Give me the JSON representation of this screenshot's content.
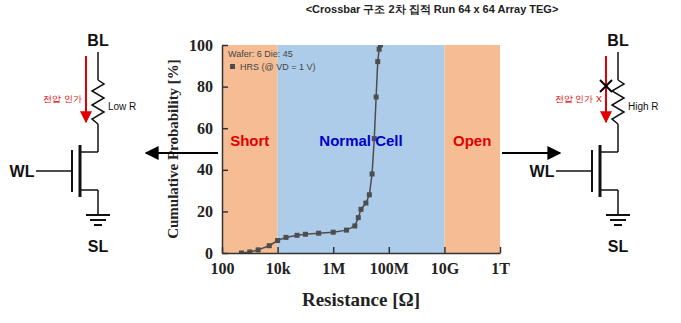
{
  "chart_data": {
    "type": "line",
    "title": "<Crossbar 구조 2차 집적 Run 64 x 64 Array TEG>",
    "subtitle": "Wafer: 6 Die: 45",
    "x_label": "Resistance [Ω]",
    "y_label": "Cumulative Probability [%]",
    "log": "x",
    "xlim": [
      100,
      1000000000000
    ],
    "xticks": [
      100,
      {
        "value": 10000,
        "label": "10k"
      },
      {
        "value": 1000000,
        "label": "1M"
      },
      {
        "value": 100000000,
        "label": "100M"
      },
      {
        "value": 10000000000,
        "label": "10G"
      },
      {
        "value": 1000000000000,
        "label": "1T"
      }
    ],
    "ylim": [
      0,
      100
    ],
    "yticks": [
      0,
      20,
      40,
      60,
      80,
      100
    ],
    "legend": "upper left",
    "x": [
      500,
      1000,
      2000,
      5000,
      10000,
      20000,
      50000,
      100000,
      300000,
      1000000,
      3000000,
      6000000,
      8000000,
      10000000,
      15000000,
      20000000,
      25000000,
      30000000,
      35000000,
      40000000,
      45000000,
      50000000
    ],
    "series": [
      {
        "name": "HRS (@ VD = 1 V)",
        "color": "#4d4d4d",
        "marker": "square",
        "values": [
          0,
          0.5,
          1.5,
          3.5,
          6,
          7.5,
          8.5,
          9,
          9.5,
          10,
          11,
          13,
          17,
          21,
          24,
          28,
          38,
          55,
          75,
          92,
          98,
          100
        ]
      }
    ],
    "regions": [
      {
        "label": "Short",
        "from": 100,
        "to": 10000,
        "color": "#f4b183"
      },
      {
        "label": "Normal Cell",
        "from": 10000,
        "to": 10000000000,
        "color": "#9dc3e6"
      },
      {
        "label": "Open",
        "from": 10000000000,
        "to": 1000000000000,
        "color": "#f4b183"
      }
    ]
  },
  "schematics": [
    {
      "bl": "BL",
      "resistor": "Low R",
      "voltage": "전압 인가",
      "wl": "WL",
      "sl": "SL"
    },
    {
      "bl": "BL",
      "resistor": "High R",
      "voltage": "전압 인가 X",
      "wl": "WL",
      "sl": "SL"
    }
  ]
}
